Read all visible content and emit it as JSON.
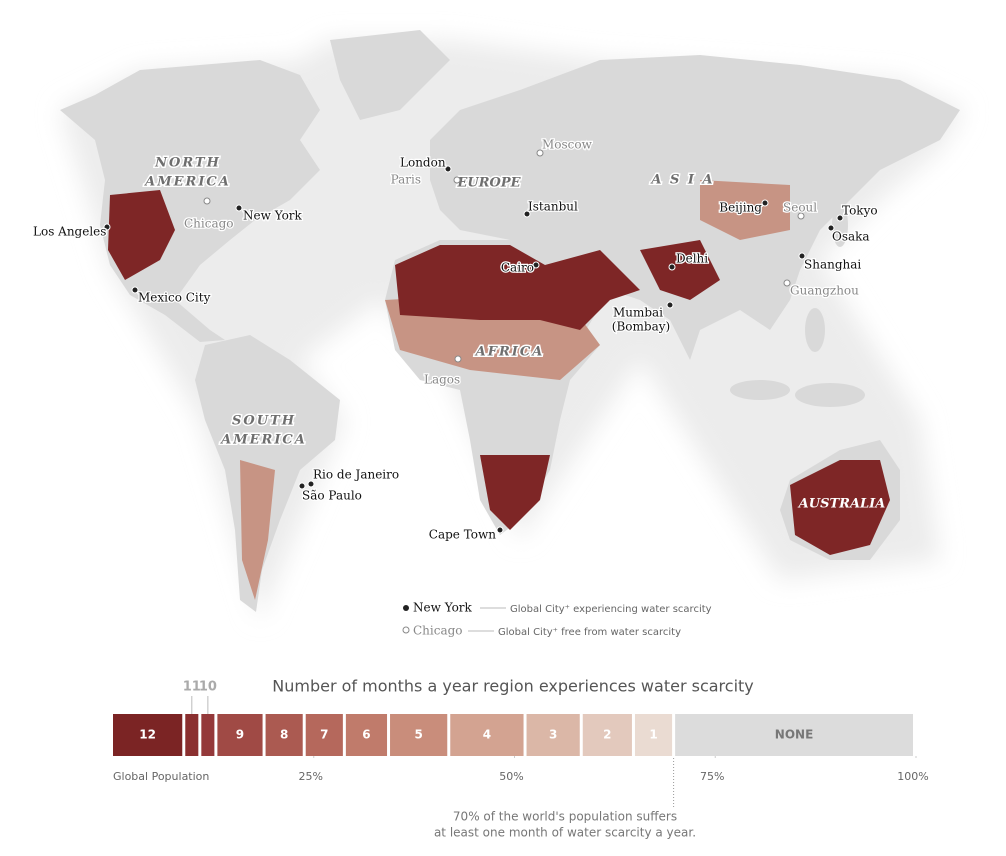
{
  "map": {
    "regions": {
      "north_america_1": "NORTH",
      "north_america_2": "AMERICA",
      "europe": "EUROPE",
      "asia": "A S I A",
      "africa": "AFRICA",
      "south_america_1": "SOUTH",
      "south_america_2": "AMERICA",
      "australia": "AUSTRALIA"
    },
    "cities": [
      {
        "name": "London",
        "scarcity": true
      },
      {
        "name": "Los Angeles",
        "scarcity": true
      },
      {
        "name": "New York",
        "scarcity": true
      },
      {
        "name": "Mexico City",
        "scarcity": true
      },
      {
        "name": "Istanbul",
        "scarcity": true
      },
      {
        "name": "Cairo",
        "scarcity": true
      },
      {
        "name": "Delhi",
        "scarcity": true
      },
      {
        "name": "Mumbai",
        "scarcity": true
      },
      {
        "name": "(Bombay)",
        "scarcity": true
      },
      {
        "name": "Beijing",
        "scarcity": true
      },
      {
        "name": "Tokyo",
        "scarcity": true
      },
      {
        "name": "Osaka",
        "scarcity": true
      },
      {
        "name": "Shanghai",
        "scarcity": true
      },
      {
        "name": "Rio de Janeiro",
        "scarcity": true
      },
      {
        "name": "São Paulo",
        "scarcity": true
      },
      {
        "name": "Cape Town",
        "scarcity": true
      },
      {
        "name": "Paris",
        "scarcity": false
      },
      {
        "name": "Moscow",
        "scarcity": false
      },
      {
        "name": "Chicago",
        "scarcity": false
      },
      {
        "name": "Seoul",
        "scarcity": false
      },
      {
        "name": "Guangzhou",
        "scarcity": false
      },
      {
        "name": "Lagos",
        "scarcity": false
      }
    ],
    "legend": {
      "scarce_city": "New York",
      "scarce_text": "Global City⁺ experiencing water scarcity",
      "free_city": "Chicago",
      "free_text": "Global City⁺ free from water scarcity"
    }
  },
  "chart_data": {
    "type": "stacked-bar",
    "title": "Number of months a year region experiences water scarcity",
    "categories": [
      "12",
      "11",
      "10",
      "9",
      "8",
      "7",
      "6",
      "5",
      "4",
      "3",
      "2",
      "1",
      "NONE"
    ],
    "values": [
      9,
      2,
      2,
      6,
      5,
      5,
      5.5,
      7.5,
      9.5,
      7,
      6.5,
      5,
      30
    ],
    "colors": [
      "#7b2424",
      "#8a2f2f",
      "#94393a",
      "#a04a45",
      "#ab5a51",
      "#b5685c",
      "#c07b6b",
      "#c98d7b",
      "#d3a391",
      "#dbb7a7",
      "#e3c9bd",
      "#eadbd2",
      "#dcdcdc"
    ],
    "x_label": "Global Population",
    "xlim": [
      0,
      100
    ],
    "xticks": [
      {
        "value": 25,
        "label": "25%"
      },
      {
        "value": 50,
        "label": "50%"
      },
      {
        "value": 75,
        "label": "75%"
      },
      {
        "value": 100,
        "label": "100%"
      }
    ],
    "annotation": [
      "70% of the world's population suffers",
      "at least one month of water scarcity a year."
    ]
  }
}
